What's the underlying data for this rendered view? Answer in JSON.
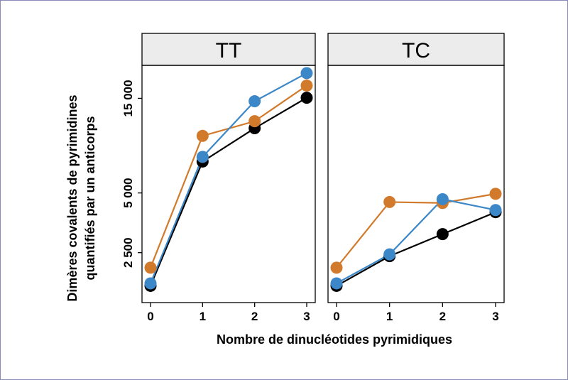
{
  "chart_data": {
    "type": "line",
    "xlabel": "Nombre de dinucléotides pyrimidiques",
    "ylabel_lines": [
      "Dimères covalents de pyrimidines",
      "quantifiés par un anticorps"
    ],
    "x": [
      0,
      1,
      2,
      3
    ],
    "x_tick_labels": [
      "0",
      "1",
      "2",
      "3"
    ],
    "y_scale": "log",
    "y_ticks": [
      2500,
      5000,
      15000
    ],
    "y_tick_labels": [
      "2 500",
      "5 000",
      "15 000"
    ],
    "ylim": [
      1400,
      22000
    ],
    "grid": false,
    "legend": "none",
    "panels": [
      {
        "title": "TT",
        "series": [
          {
            "color": "#000000",
            "values": [
              1700,
              7200,
              10600,
              15100
            ]
          },
          {
            "color": "#d27a2c",
            "values": [
              2100,
              9700,
              11500,
              17400
            ]
          },
          {
            "color": "#3b87c8",
            "values": [
              1750,
              7600,
              14500,
              20100
            ]
          }
        ]
      },
      {
        "title": "TC",
        "series": [
          {
            "color": "#000000",
            "values": [
              1700,
              2400,
              3100,
              4000
            ]
          },
          {
            "color": "#d27a2c",
            "values": [
              2100,
              4500,
              4450,
              4950
            ]
          },
          {
            "color": "#3b87c8",
            "values": [
              1750,
              2450,
              4650,
              4100
            ]
          }
        ]
      }
    ]
  }
}
